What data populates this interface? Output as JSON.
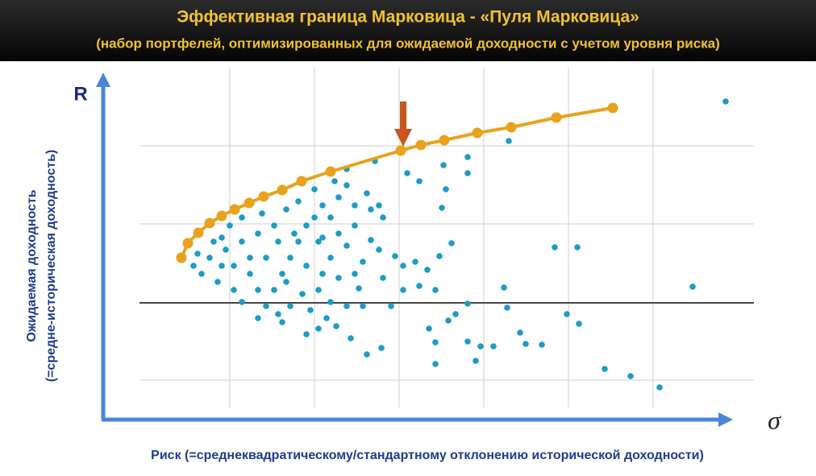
{
  "chart_data": {
    "type": "scatter",
    "title": "Эффективная граница Марковица - «Пуля Марковица»",
    "subtitle": "(набор портфелей, оптимизированных для ожидаемой доходности с учетом уровня риска)",
    "y_axis_symbol": "R",
    "x_axis_symbol": "σ",
    "y_label": [
      "Ожидаемая доходность",
      "(=средне-историческая  доходность)"
    ],
    "x_label": "Риск (=среднеквадратическому/стандартному отклонению исторической  доходности)",
    "xlim": [
      0,
      777
    ],
    "ylim": [
      0,
      427
    ],
    "xticks": [
      157,
      262,
      367,
      472,
      577,
      682
    ],
    "yticks": [
      49,
      145,
      243,
      340
    ],
    "grid": true,
    "reference_y": 145,
    "frontier": {
      "color": "#e8a21e",
      "x": [
        97,
        105,
        118,
        132,
        147,
        163,
        181,
        199,
        222,
        246,
        282,
        369,
        394,
        423,
        464,
        506,
        562,
        632
      ],
      "y": [
        201,
        219,
        232,
        244,
        253,
        261,
        269,
        277,
        285,
        296,
        308,
        334,
        341,
        347,
        356,
        363,
        375,
        387
      ]
    },
    "points": {
      "color": "#1d9cc4",
      "x": [
        772,
        503,
        560,
        588,
        731,
        497,
        452,
        575,
        590,
        517,
        501,
        524,
        544,
        484,
        468,
        452,
        462,
        412,
        412,
        404,
        428,
        437,
        622,
        654,
        690,
        327,
        345,
        307,
        289,
        252,
        267,
        277,
        357,
        372,
        392,
        412,
        402,
        387,
        362,
        342,
        332,
        432,
        417,
        372,
        347,
        317,
        312,
        322,
        347,
        342,
        377,
        392,
        422,
        425,
        420,
        452,
        452,
        332,
        327,
        312,
        302,
        292,
        282,
        272,
        262,
        302,
        337,
        252,
        242,
        232,
        222,
        212,
        202,
        192,
        222,
        172,
        162,
        142,
        122,
        112,
        132,
        152,
        172,
        192,
        212,
        227,
        242,
        262,
        272,
        282,
        292,
        267,
        247,
        232,
        257,
        182,
        162,
        147,
        172,
        197,
        217,
        202,
        252,
        272,
        227,
        157,
        137,
        117,
        292,
        302,
        312,
        287,
        267,
        237,
        182,
        147,
        217,
        192,
        302,
        322,
        282
      ],
      "y": [
        395,
        346,
        214,
        214,
        165,
        164,
        144,
        131,
        119,
        108,
        139,
        94,
        93,
        91,
        91,
        97,
        73,
        69,
        96,
        113,
        123,
        131,
        63,
        54,
        40,
        81,
        89,
        101,
        116,
        106,
        113,
        126,
        141,
        161,
        166,
        161,
        186,
        196,
        203,
        211,
        223,
        219,
        203,
        191,
        176,
        163,
        181,
        196,
        251,
        266,
        306,
        296,
        316,
        286,
        263,
        326,
        306,
        261,
        281,
        266,
        291,
        276,
        251,
        266,
        286,
        311,
        321,
        241,
        221,
        201,
        181,
        161,
        141,
        126,
        121,
        146,
        161,
        171,
        181,
        191,
        201,
        211,
        221,
        231,
        241,
        261,
        271,
        251,
        226,
        201,
        176,
        161,
        156,
        141,
        136,
        181,
        191,
        226,
        251,
        256,
        221,
        201,
        191,
        181,
        171,
        241,
        221,
        206,
        231,
        216,
        241,
        296,
        221,
        231,
        201,
        191,
        131,
        161,
        141,
        141,
        146
      ]
    }
  }
}
